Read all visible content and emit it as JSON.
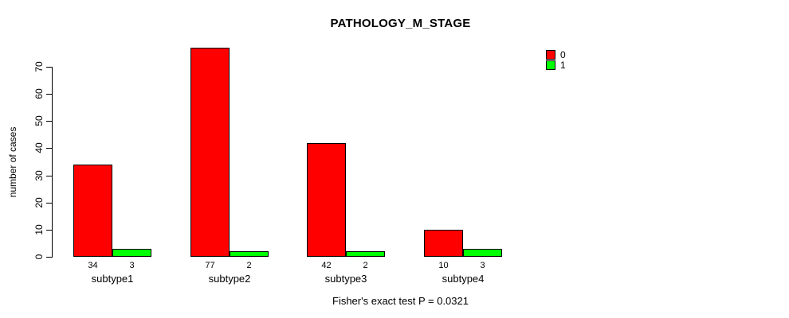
{
  "chart_data": {
    "type": "bar",
    "title": "PATHOLOGY_M_STAGE",
    "xlabel": "",
    "ylabel": "number of cases",
    "categories": [
      "subtype1",
      "subtype2",
      "subtype3",
      "subtype4"
    ],
    "series": [
      {
        "name": "0",
        "color": "#ff0000",
        "values": [
          34,
          77,
          42,
          10
        ]
      },
      {
        "name": "1",
        "color": "#00ff00",
        "values": [
          3,
          2,
          2,
          3
        ]
      }
    ],
    "y_ticks": [
      0,
      10,
      20,
      30,
      40,
      50,
      60,
      70
    ],
    "ylim": [
      0,
      77
    ],
    "grid": false,
    "bar_value_labels_shown": true,
    "legend": {
      "position": "top-right",
      "entries": [
        {
          "label": "0",
          "color": "#ff0000"
        },
        {
          "label": "1",
          "color": "#00ff00"
        }
      ]
    },
    "annotation": "Fisher's exact test P = 0.0321"
  }
}
